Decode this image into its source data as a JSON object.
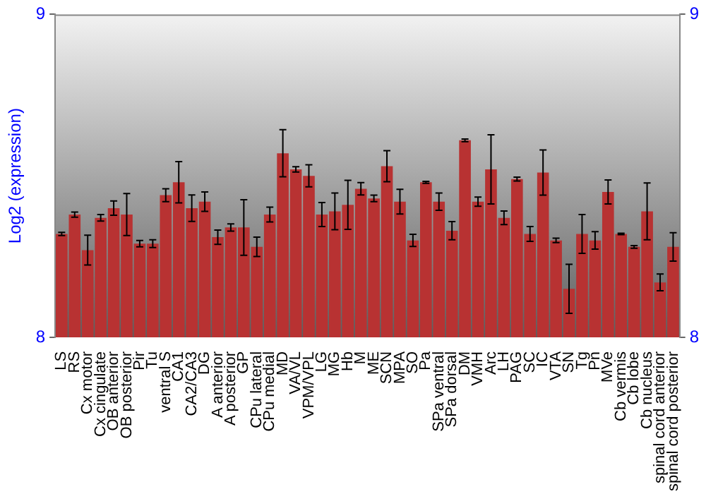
{
  "chart_data": {
    "type": "bar",
    "ylabel": "Log2 (expression)",
    "categories": [
      "LS",
      "RS",
      "Cx motor",
      "Cx cingulate",
      "OB anterior",
      "OB posterior",
      "Pir",
      "Tu",
      "ventral S",
      "CA1",
      "CA2/CA3",
      "DG",
      "A anterior",
      "A posterior",
      "GP",
      "CPu lateral",
      "CPu medial",
      "MD",
      "VA/VL",
      "VPM/VPL",
      "LG",
      "MG",
      "Hb",
      "M",
      "ME",
      "SCN",
      "MPA",
      "SO",
      "Pa",
      "SPa ventral",
      "SPa dorsal",
      "DM",
      "VMH",
      "Arc",
      "LH",
      "PAG",
      "SC",
      "IC",
      "VTA",
      "SN",
      "Tg",
      "Pn",
      "MVe",
      "Cb vermis",
      "Cb lobe",
      "Cb nucleus",
      "spinal cord anterior",
      "spinal cord posterior"
    ],
    "values": [
      8.32,
      8.38,
      8.27,
      8.37,
      8.4,
      8.38,
      8.29,
      8.29,
      8.44,
      8.48,
      8.4,
      8.42,
      8.31,
      8.34,
      8.34,
      8.28,
      8.38,
      8.57,
      8.52,
      8.5,
      8.38,
      8.39,
      8.41,
      8.46,
      8.43,
      8.53,
      8.42,
      8.3,
      8.48,
      8.42,
      8.33,
      8.61,
      8.42,
      8.52,
      8.37,
      8.49,
      8.32,
      8.51,
      8.3,
      8.15,
      8.32,
      8.3,
      8.45,
      8.32,
      8.28,
      8.39,
      8.17,
      8.28
    ],
    "errors": [
      0.005,
      0.008,
      0.046,
      0.01,
      0.022,
      0.065,
      0.01,
      0.012,
      0.02,
      0.064,
      0.041,
      0.03,
      0.022,
      0.011,
      0.086,
      0.03,
      0.023,
      0.073,
      0.008,
      0.034,
      0.037,
      0.057,
      0.076,
      0.019,
      0.01,
      0.048,
      0.038,
      0.019,
      0.003,
      0.027,
      0.028,
      0.004,
      0.014,
      0.107,
      0.021,
      0.006,
      0.023,
      0.07,
      0.007,
      0.076,
      0.06,
      0.027,
      0.037,
      0.002,
      0.004,
      0.088,
      0.026,
      0.044
    ],
    "color": "#b83232",
    "ylim": [
      8,
      9
    ],
    "yticks": [
      8,
      9
    ],
    "y2lim": [
      8,
      9
    ],
    "y2ticks": [
      8,
      9
    ]
  }
}
